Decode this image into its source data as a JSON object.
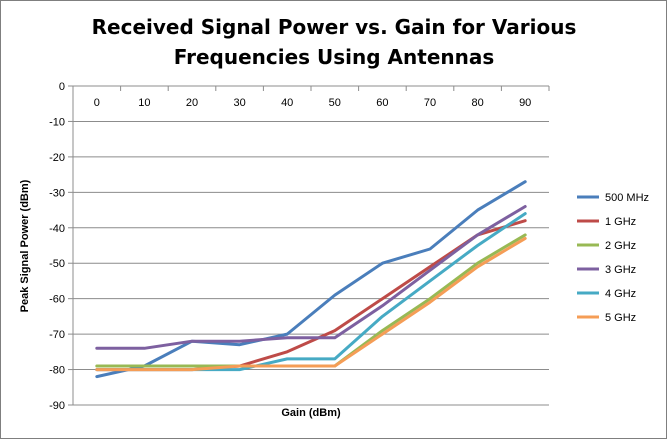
{
  "chart_data": {
    "type": "line",
    "title_line1": "Received Signal Power vs. Gain for Various",
    "title_line2": "Frequencies Using Antennas",
    "xlabel": "Gain  (dBm)",
    "ylabel": "Peak Signal Power (dBm)",
    "x": [
      0,
      10,
      20,
      30,
      40,
      50,
      60,
      70,
      80,
      90
    ],
    "xlim": [
      0,
      90
    ],
    "ylim": [
      -90,
      0
    ],
    "yticks": [
      0,
      -10,
      -20,
      -30,
      -40,
      -50,
      -60,
      -70,
      -80,
      -90
    ],
    "x_tick_position": "top",
    "grid": "horizontal",
    "legend_position": "right",
    "series": [
      {
        "name": "500 MHz",
        "color": "#4a7ebb",
        "values": [
          -82,
          -79,
          -72,
          -73,
          -70,
          -59,
          -50,
          -46,
          -35,
          -27
        ]
      },
      {
        "name": "1 GHz",
        "color": "#be4b48",
        "values": [
          -80,
          -80,
          -80,
          -79,
          -75,
          -69,
          -60,
          -51,
          -42,
          -38
        ]
      },
      {
        "name": "2 GHz",
        "color": "#98b954",
        "values": [
          -79,
          -79,
          -79,
          -79,
          -79,
          -79,
          -69,
          -60,
          -50,
          -42
        ]
      },
      {
        "name": "3 GHz",
        "color": "#7d60a0",
        "values": [
          -74,
          -74,
          -72,
          -72,
          -71,
          -71,
          -62,
          -52,
          -42,
          -34
        ]
      },
      {
        "name": "4 GHz",
        "color": "#46aac4",
        "values": [
          -80,
          -80,
          -80,
          -80,
          -77,
          -77,
          -65,
          -55,
          -45,
          -36
        ]
      },
      {
        "name": "5 GHz",
        "color": "#f59d56",
        "values": [
          -80,
          -80,
          -80,
          -79,
          -79,
          -79,
          -70,
          -61,
          -51,
          -43
        ]
      }
    ]
  }
}
